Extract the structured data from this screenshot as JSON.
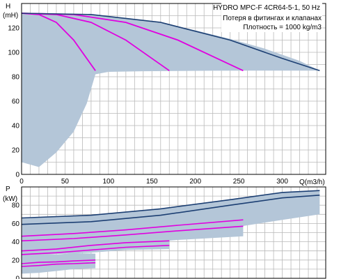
{
  "header": {
    "title": "HYDRO MPC-F 4CR64-5-1, 50 Hz",
    "note_losses": "Потеря в фитингах и клапанах",
    "note_density": "Плотность = 1000 kg/m3"
  },
  "colors": {
    "grid": "#b9b9b9",
    "envelope_fill": "#b4c6d8",
    "dark_curve": "#1c3f73",
    "magenta_curve": "#e000e0",
    "frame": "#000000"
  },
  "chart_data": [
    {
      "type": "line",
      "ylabel": "H",
      "yunit": "(mH)",
      "xlabel": "Q(m3/h)",
      "xlim": [
        0,
        350
      ],
      "ylim": [
        0,
        140
      ],
      "x_ticks": [
        "0",
        "50",
        "100",
        "150",
        "200",
        "250",
        "300"
      ],
      "y_ticks": [
        "0",
        "20",
        "40",
        "60",
        "80",
        "100",
        "120"
      ],
      "grid": true,
      "envelope_upper": {
        "x": [
          0,
          30,
          50,
          80,
          120,
          160,
          200,
          240,
          280,
          320,
          343
        ],
        "y": [
          132,
          132,
          131.5,
          130.5,
          128,
          124,
          118,
          111,
          103,
          93,
          85
        ]
      },
      "envelope_lower": {
        "x": [
          0,
          20,
          40,
          60,
          75,
          85,
          100,
          140,
          180,
          220,
          260,
          300,
          343
        ],
        "y": [
          10,
          6,
          18,
          35,
          58,
          82,
          84,
          84.5,
          84.7,
          84.9,
          85,
          85,
          85
        ]
      },
      "series": [
        {
          "x": [
            0,
            20,
            40,
            60,
            75,
            85
          ],
          "y": [
            132,
            131,
            124.5,
            110,
            95,
            85
          ]
        },
        {
          "x": [
            0,
            40,
            80,
            120,
            150,
            170
          ],
          "y": [
            132,
            131,
            124.5,
            110,
            95,
            85
          ]
        },
        {
          "x": [
            0,
            60,
            120,
            180,
            225,
            255
          ],
          "y": [
            132,
            131,
            124.5,
            110,
            95,
            85
          ]
        },
        {
          "x": [
            0,
            80,
            160,
            240,
            300,
            343
          ],
          "y": [
            132,
            131,
            124.5,
            110,
            95,
            85
          ]
        }
      ]
    },
    {
      "type": "line",
      "ylabel": "P",
      "yunit": "(kW)",
      "xlim": [
        0,
        350
      ],
      "ylim": [
        0,
        100
      ],
      "y_ticks": [
        "0",
        "20",
        "40",
        "60",
        "80"
      ],
      "grid": true,
      "bands": [
        {
          "upper": {
            "x": [
              0,
              20,
              40,
              60,
              85
            ],
            "y": [
              26,
              26.5,
              26,
              27.5,
              27
            ]
          },
          "lower": {
            "x": [
              0,
              20,
              40,
              60,
              85
            ],
            "y": [
              5,
              6,
              8,
              10,
              11
            ]
          }
        },
        {
          "upper": {
            "x": [
              0,
              40,
              80,
              120,
              170
            ],
            "y": [
              46,
              47,
              46,
              49,
              48
            ]
          },
          "lower": {
            "x": [
              0,
              40,
              80,
              120,
              170
            ],
            "y": [
              25,
              26.5,
              28,
              31,
              32
            ]
          }
        },
        {
          "upper": {
            "x": [
              0,
              60,
              120,
              180,
              255
            ],
            "y": [
              64,
              66,
              70,
              76,
              80
            ]
          },
          "lower": {
            "x": [
              0,
              60,
              120,
              180,
              255
            ],
            "y": [
              30,
              33,
              37,
              42,
              46
            ]
          }
        },
        {
          "upper": {
            "x": [
              0,
              80,
              160,
              240,
              300,
              343
            ],
            "y": [
              66,
              69,
              76,
              86,
              94,
              96
            ]
          },
          "lower": {
            "x": [
              0,
              80,
              160,
              240,
              300,
              343
            ],
            "y": [
              36,
              40,
              46,
              55,
              64,
              70
            ]
          }
        }
      ],
      "series_dark": [
        {
          "x": [
            0,
            80,
            160,
            240,
            300,
            343
          ],
          "y": [
            66,
            69,
            76,
            86,
            94,
            96
          ]
        },
        {
          "x": [
            0,
            80,
            160,
            240,
            300,
            343
          ],
          "y": [
            59,
            62,
            69,
            80,
            88,
            91
          ]
        }
      ],
      "series_magenta": [
        {
          "x": [
            0,
            60,
            120,
            180,
            255
          ],
          "y": [
            46,
            49,
            53,
            58,
            64
          ]
        },
        {
          "x": [
            0,
            60,
            120,
            180,
            255
          ],
          "y": [
            41,
            43.5,
            47.5,
            52,
            57
          ]
        },
        {
          "x": [
            0,
            40,
            80,
            120,
            170
          ],
          "y": [
            30,
            32,
            36,
            39,
            41
          ]
        },
        {
          "x": [
            0,
            40,
            80,
            120,
            170
          ],
          "y": [
            26,
            28,
            31,
            34,
            36
          ]
        },
        {
          "x": [
            0,
            20,
            40,
            60,
            85
          ],
          "y": [
            16,
            17.5,
            18,
            19,
            20
          ]
        },
        {
          "x": [
            0,
            20,
            40,
            60,
            85
          ],
          "y": [
            13,
            14,
            15.5,
            16,
            17
          ]
        }
      ]
    }
  ]
}
